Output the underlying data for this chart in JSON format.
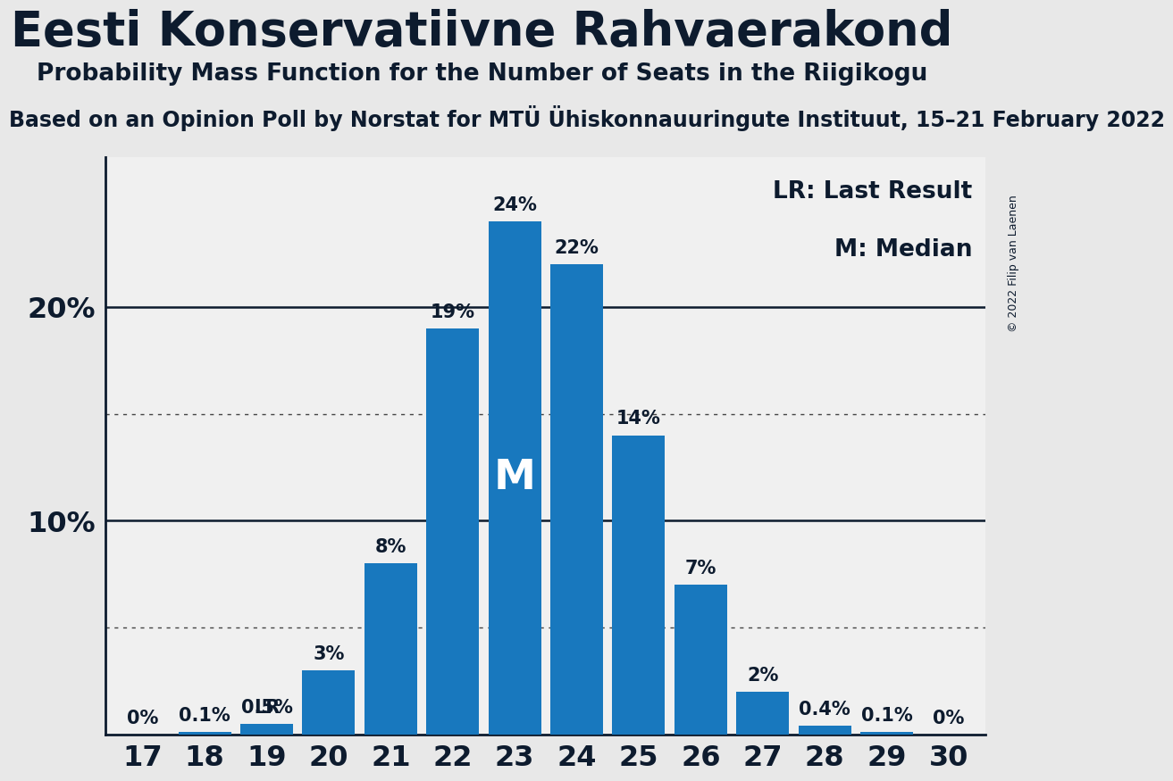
{
  "title": "Eesti Konservatiivne Rahvaerakond",
  "subtitle": "Probability Mass Function for the Number of Seats in the Riigikogu",
  "subsubtitle": "Based on an Opinion Poll by Norstat for MTÜ Ühiskonnauuringute Instituut, 15–21 February 2022",
  "copyright": "© 2022 Filip van Laenen",
  "seats": [
    17,
    18,
    19,
    20,
    21,
    22,
    23,
    24,
    25,
    26,
    27,
    28,
    29,
    30
  ],
  "probabilities": [
    0.0,
    0.1,
    0.5,
    3.0,
    8.0,
    19.0,
    24.0,
    22.0,
    14.0,
    7.0,
    2.0,
    0.4,
    0.1,
    0.0
  ],
  "bar_color": "#1878be",
  "background_color": "#e8e8e8",
  "plot_bg_color": "#f0f0f0",
  "title_color": "#0d1b2e",
  "axis_color": "#0d1b2e",
  "yticks": [
    10,
    20
  ],
  "ytick_labels": [
    "10%",
    "20%"
  ],
  "ylim": [
    0,
    27
  ],
  "dotted_lines": [
    5,
    15
  ],
  "solid_lines": [
    10,
    20
  ],
  "lr_seat": 19,
  "median_seat": 23,
  "legend_lr": "LR: Last Result",
  "legend_m": "M: Median",
  "bar_labels": [
    "0%",
    "0.1%",
    "0.5%",
    "3%",
    "8%",
    "19%",
    "24%",
    "22%",
    "14%",
    "7%",
    "2%",
    "0.4%",
    "0.1%",
    "0%"
  ],
  "label_fontsize": 15,
  "title_fontsize": 38,
  "subtitle_fontsize": 19,
  "subsubtitle_fontsize": 17,
  "tick_fontsize": 23,
  "legend_fontsize": 19,
  "copyright_fontsize": 9,
  "m_fontsize": 34
}
